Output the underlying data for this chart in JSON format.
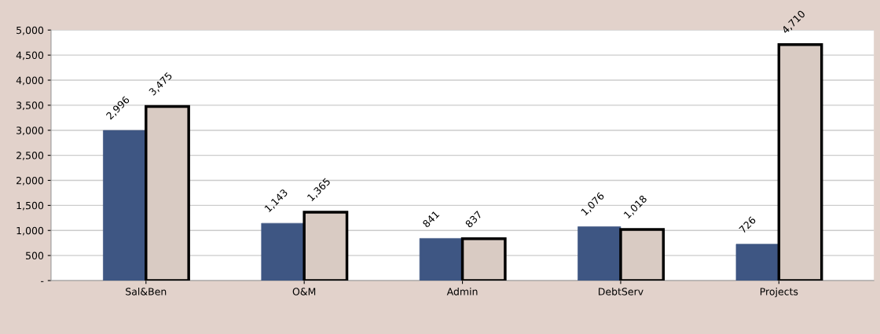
{
  "chart_data": {
    "type": "bar",
    "categories": [
      "Sal&Ben",
      "O&M",
      "Admin",
      "DebtServ",
      "Projects"
    ],
    "series": [
      {
        "color": "#3e5683",
        "values": [
          2996,
          1143,
          841,
          1076,
          726
        ],
        "value_labels": [
          "2,996",
          "1,143",
          "841",
          "1,076",
          "726"
        ]
      },
      {
        "color": "#d9cbc3",
        "values": [
          3475,
          1365,
          837,
          1018,
          4710
        ],
        "value_labels": [
          "3,475",
          "1,365",
          "837",
          "1,018",
          "4,710"
        ]
      }
    ],
    "ylim": [
      0,
      5000
    ],
    "yticks": [
      {
        "value": 0,
        "label": "-"
      },
      {
        "value": 500,
        "label": "500"
      },
      {
        "value": 1000,
        "label": "1,000"
      },
      {
        "value": 1500,
        "label": "1,500"
      },
      {
        "value": 2000,
        "label": "2,000"
      },
      {
        "value": 2500,
        "label": "2,500"
      },
      {
        "value": 3000,
        "label": "3,000"
      },
      {
        "value": 3500,
        "label": "3,500"
      },
      {
        "value": 4000,
        "label": "4,000"
      },
      {
        "value": 4500,
        "label": "4,500"
      },
      {
        "value": 5000,
        "label": "5,000"
      }
    ],
    "grid": "y"
  }
}
